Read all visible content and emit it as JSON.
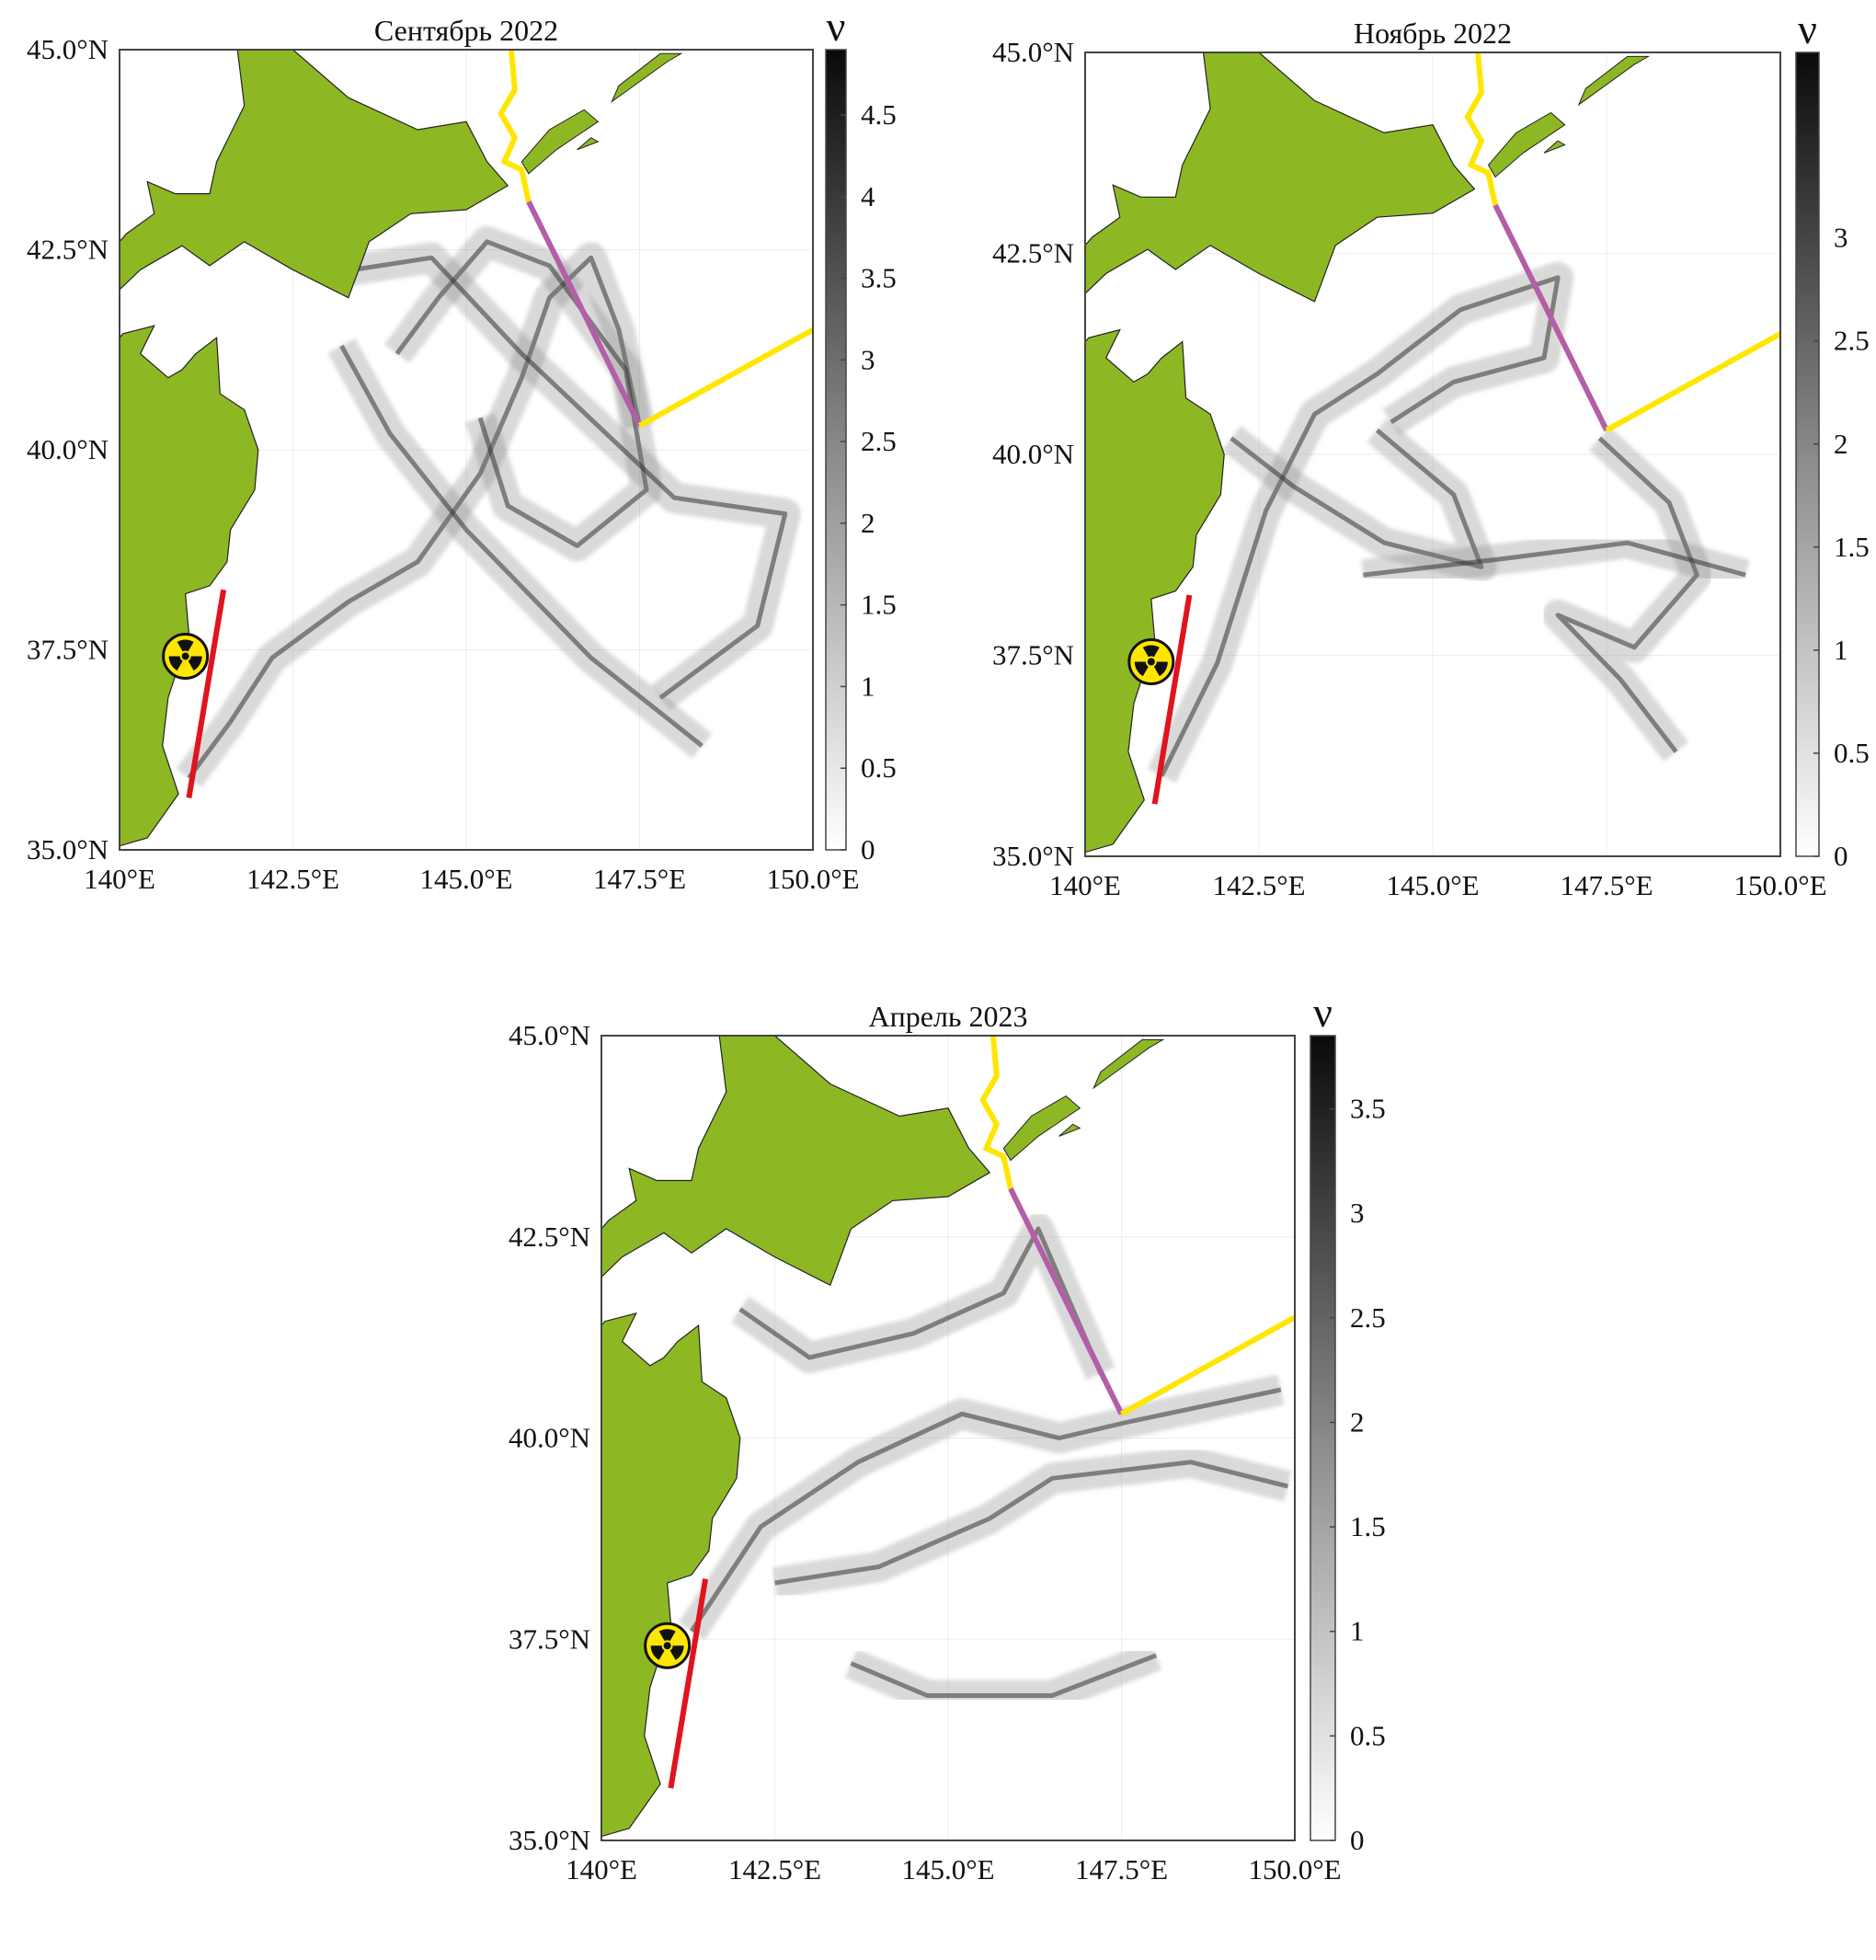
{
  "panels": [
    {
      "title": "Сентябрь 2022",
      "xlim": [
        140,
        150
      ],
      "ylim": [
        35,
        45
      ],
      "xticks": [
        {
          "value": 140,
          "label": "140°E"
        },
        {
          "value": 142.5,
          "label": "142.5°E"
        },
        {
          "value": 145,
          "label": "145.0°E"
        },
        {
          "value": 147.5,
          "label": "147.5°E"
        },
        {
          "value": 150,
          "label": "150.0°E"
        }
      ],
      "yticks": [
        {
          "value": 35,
          "label": "35.0°N"
        },
        {
          "value": 37.5,
          "label": "37.5°N"
        },
        {
          "value": 40,
          "label": "40.0°N"
        },
        {
          "value": 42.5,
          "label": "42.5°N"
        },
        {
          "value": 45,
          "label": "45.0°N"
        }
      ],
      "colorbar": {
        "label": "ν",
        "range": [
          0,
          4.9
        ],
        "ticks": [
          0,
          0.5,
          1,
          1.5,
          2,
          2.5,
          3,
          3.5,
          4,
          4.5
        ]
      }
    },
    {
      "title": "Ноябрь 2022",
      "xlim": [
        140,
        150
      ],
      "ylim": [
        35,
        45
      ],
      "xticks": [
        {
          "value": 140,
          "label": "140°E"
        },
        {
          "value": 142.5,
          "label": "142.5°E"
        },
        {
          "value": 145,
          "label": "145.0°E"
        },
        {
          "value": 147.5,
          "label": "147.5°E"
        },
        {
          "value": 150,
          "label": "150.0°E"
        }
      ],
      "yticks": [
        {
          "value": 35,
          "label": "35.0°N"
        },
        {
          "value": 37.5,
          "label": "37.5°N"
        },
        {
          "value": 40,
          "label": "40.0°N"
        },
        {
          "value": 42.5,
          "label": "42.5°N"
        },
        {
          "value": 45,
          "label": "45.0°N"
        }
      ],
      "colorbar": {
        "label": "ν",
        "range": [
          0,
          3.9
        ],
        "ticks": [
          0,
          0.5,
          1,
          1.5,
          2,
          2.5,
          3
        ]
      }
    },
    {
      "title": "Апрель 2023",
      "xlim": [
        140,
        150
      ],
      "ylim": [
        35,
        45
      ],
      "xticks": [
        {
          "value": 140,
          "label": "140°E"
        },
        {
          "value": 142.5,
          "label": "142.5°E"
        },
        {
          "value": 145,
          "label": "145.0°E"
        },
        {
          "value": 147.5,
          "label": "147.5°E"
        },
        {
          "value": 150,
          "label": "150.0°E"
        }
      ],
      "yticks": [
        {
          "value": 35,
          "label": "35.0°N"
        },
        {
          "value": 37.5,
          "label": "37.5°N"
        },
        {
          "value": 40,
          "label": "40.0°N"
        },
        {
          "value": 42.5,
          "label": "42.5°N"
        },
        {
          "value": 45,
          "label": "45.0°N"
        }
      ],
      "colorbar": {
        "label": "ν",
        "range": [
          0,
          3.85
        ],
        "ticks": [
          0,
          0.5,
          1,
          1.5,
          2,
          2.5,
          3,
          3.5
        ]
      }
    }
  ]
}
